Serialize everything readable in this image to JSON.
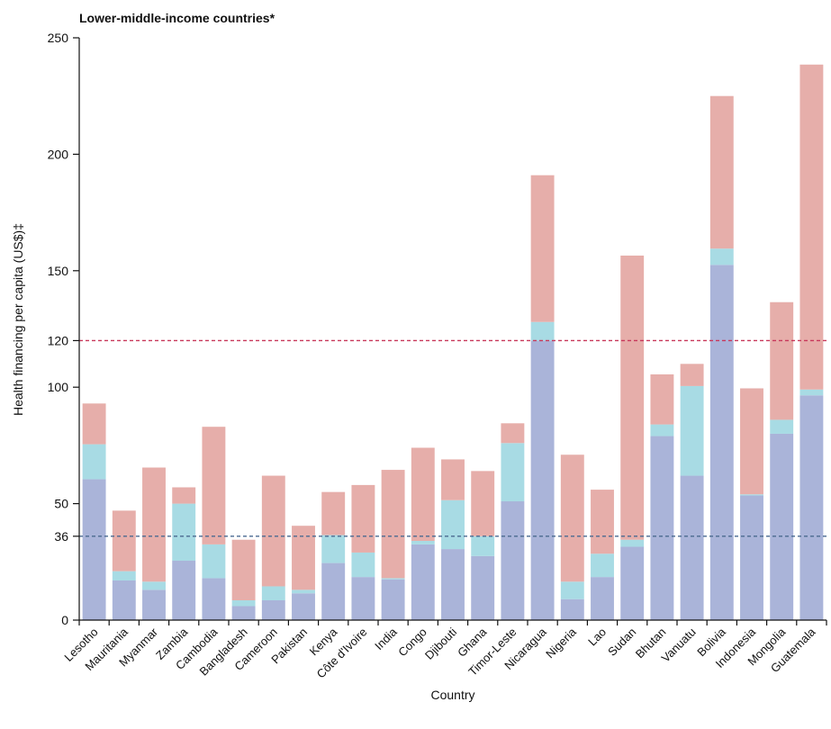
{
  "chart_data": {
    "type": "bar",
    "stacked": true,
    "title": "Lower-middle-income countries*",
    "xlabel": "Country",
    "ylabel": "Health financing per capita (US$)‡",
    "ylim": [
      0,
      250
    ],
    "yticks": [
      0,
      36,
      50,
      100,
      120,
      150,
      200,
      250
    ],
    "categories": [
      "Lesotho",
      "Mauritania",
      "Myanmar",
      "Zambia",
      "Cambodia",
      "Bangladesh",
      "Cameroon",
      "Pakistan",
      "Kenya",
      "Côte d'Ivoire",
      "India",
      "Congo",
      "Djibouti",
      "Ghana",
      "Timor-Leste",
      "Nicaragua",
      "Nigeria",
      "Lao",
      "Sudan",
      "Bhutan",
      "Vanuatu",
      "Bolivia",
      "Indonesia",
      "Mongolia",
      "Guatemala"
    ],
    "series": [
      {
        "color": "#aab4d9",
        "values": [
          60.5,
          17,
          13,
          25.5,
          18,
          6,
          8.5,
          11.5,
          24.5,
          18.5,
          17.5,
          32.5,
          30.5,
          27.5,
          51,
          120,
          9,
          18.5,
          31.5,
          79,
          62,
          152.5,
          53.5,
          80,
          96.5
        ]
      },
      {
        "color": "#a8dbe4",
        "values": [
          15,
          4,
          3.5,
          24.5,
          14.5,
          2.5,
          6,
          1.5,
          12,
          10.5,
          0.5,
          1.5,
          21,
          8.5,
          25,
          8,
          7.5,
          10,
          3,
          5,
          38.5,
          7,
          0.5,
          6,
          2.5
        ]
      },
      {
        "color": "#e6aeaa",
        "values": [
          17.5,
          26,
          49,
          7,
          50.5,
          26,
          47.5,
          27.5,
          18.5,
          29,
          46.5,
          40,
          17.5,
          28,
          8.5,
          63,
          54.5,
          27.5,
          122,
          21.5,
          9.5,
          65.5,
          45.5,
          50.5,
          139.5
        ]
      }
    ],
    "reference_lines": [
      {
        "value": 120,
        "color": "#c8375a",
        "style": "dashed"
      },
      {
        "value": 36,
        "color": "#4a6a90",
        "style": "dashed"
      }
    ]
  }
}
